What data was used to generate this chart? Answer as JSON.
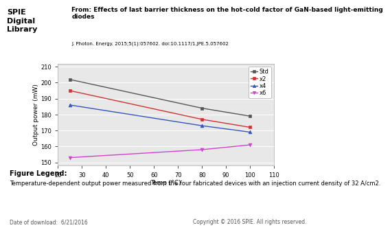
{
  "title_text": "From: Effects of last barrier thickness on the hot–cold factor of GaN-based light-emitting\ndiodes",
  "doi_text": "J. Photon. Energy. 2015;5(1):057602. doi:10.1117/1.JPE.5.057602",
  "spie_logo_text": "SPIE\nDigital\nLibrary",
  "series": [
    {
      "label": "Std",
      "color": "#555555",
      "marker": "s",
      "x": [
        25,
        80,
        100
      ],
      "y": [
        202,
        184,
        179
      ]
    },
    {
      "label": "x2",
      "color": "#cc3333",
      "marker": "s",
      "x": [
        25,
        80,
        100
      ],
      "y": [
        195,
        177,
        172
      ]
    },
    {
      "label": "x4",
      "color": "#3355bb",
      "marker": "^",
      "x": [
        25,
        80,
        100
      ],
      "y": [
        186,
        173,
        169
      ]
    },
    {
      "label": "x6",
      "color": "#cc44cc",
      "marker": "v",
      "x": [
        25,
        80,
        100
      ],
      "y": [
        153,
        158,
        161
      ]
    }
  ],
  "xlabel": "Temp (°C)",
  "ylabel": "Output power (mW)",
  "xlim": [
    20,
    110
  ],
  "ylim": [
    148,
    212
  ],
  "xticks": [
    20,
    30,
    40,
    50,
    60,
    70,
    80,
    90,
    100,
    110
  ],
  "yticks": [
    150,
    160,
    170,
    180,
    190,
    200,
    210
  ],
  "legend_loc": "upper right",
  "figure_legend_bold": "Figure Legend:",
  "figure_legend_text": "Temperature-dependent output power measured from the four fabricated devices with an injection current density of 32 A/cm2.",
  "footer_left": "Date of download:  6/21/2016",
  "footer_right": "Copyright © 2016 SPIE. All rights reserved.",
  "background_color": "#ffffff",
  "plot_bg_color": "#e8e8e8"
}
